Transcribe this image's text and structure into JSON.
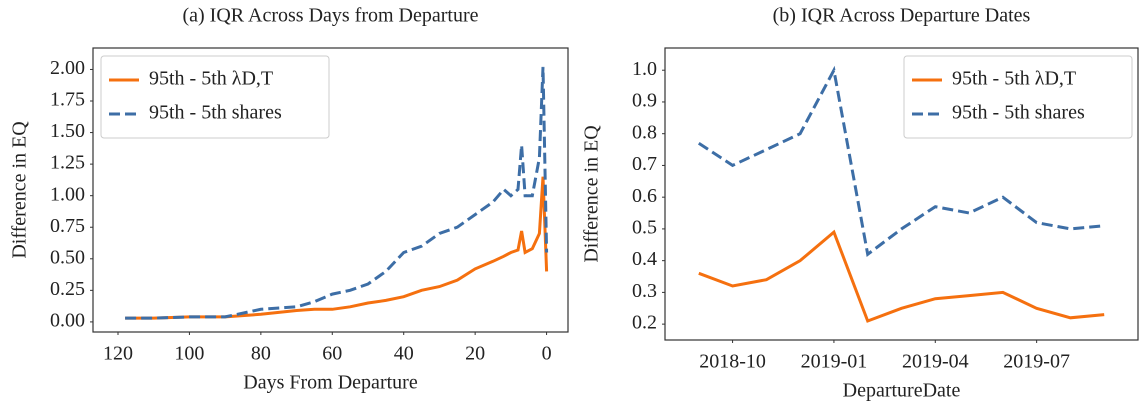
{
  "chart_data": [
    {
      "type": "line",
      "title": "(a) IQR Across Days from Departure",
      "xlabel": "Days From Departure",
      "ylabel": "Difference in EQ",
      "x": [
        118,
        110,
        100,
        90,
        80,
        70,
        65,
        60,
        55,
        50,
        45,
        40,
        35,
        30,
        25,
        20,
        15,
        12,
        10,
        8,
        7,
        6,
        4,
        2,
        1,
        0
      ],
      "series": [
        {
          "name": "95th - 5th λD,T",
          "color": "#f5700f",
          "line_style": "solid",
          "values": [
            0.03,
            0.03,
            0.04,
            0.04,
            0.06,
            0.09,
            0.1,
            0.1,
            0.12,
            0.15,
            0.17,
            0.2,
            0.25,
            0.28,
            0.33,
            0.42,
            0.48,
            0.52,
            0.55,
            0.57,
            0.72,
            0.55,
            0.58,
            0.7,
            1.15,
            0.4
          ]
        },
        {
          "name": "95th - 5th shares",
          "color": "#3d6ea6",
          "line_style": "dashed",
          "values": [
            0.03,
            0.03,
            0.04,
            0.04,
            0.1,
            0.12,
            0.16,
            0.22,
            0.25,
            0.3,
            0.4,
            0.55,
            0.6,
            0.7,
            0.75,
            0.85,
            0.95,
            1.05,
            1.0,
            1.05,
            1.4,
            1.0,
            1.0,
            1.3,
            2.02,
            0.55
          ]
        }
      ],
      "xlim": [
        127,
        -6
      ],
      "xticks": [
        120,
        100,
        80,
        60,
        40,
        20,
        0
      ],
      "ylim": [
        -0.08,
        2.17
      ],
      "yticks": [
        {
          "value": 0,
          "label": "0.00"
        },
        {
          "value": 0.25,
          "label": "0.25"
        },
        {
          "value": 0.5,
          "label": "0.50"
        },
        {
          "value": 0.75,
          "label": "0.75"
        },
        {
          "value": 1,
          "label": "1.00"
        },
        {
          "value": 1.25,
          "label": "1.25"
        },
        {
          "value": 1.5,
          "label": "1.50"
        },
        {
          "value": 1.75,
          "label": "1.75"
        },
        {
          "value": 2,
          "label": "2.00"
        }
      ],
      "legend": "upper left"
    },
    {
      "type": "line",
      "title": "(b) IQR Across Departure Dates",
      "xlabel": "DepartureDate",
      "ylabel": "Difference in EQ",
      "x": [
        "2018-09",
        "2018-10",
        "2018-11",
        "2018-12",
        "2019-01",
        "2019-02",
        "2019-03",
        "2019-04",
        "2019-05",
        "2019-06",
        "2019-07",
        "2019-08",
        "2019-09"
      ],
      "series": [
        {
          "name": "95th - 5th λD,T",
          "color": "#f5700f",
          "line_style": "solid",
          "values": [
            0.36,
            0.32,
            0.34,
            0.4,
            0.49,
            0.21,
            0.25,
            0.28,
            0.29,
            0.3,
            0.25,
            0.22,
            0.23
          ]
        },
        {
          "name": "95th - 5th shares",
          "color": "#3d6ea6",
          "line_style": "dashed",
          "values": [
            0.77,
            0.7,
            0.75,
            0.8,
            1.0,
            0.42,
            0.5,
            0.57,
            0.55,
            0.6,
            0.52,
            0.5,
            0.51
          ]
        }
      ],
      "xlim": [
        "2018-08",
        "2019-10"
      ],
      "xticks": [
        "2018-10",
        "2019-01",
        "2019-04",
        "2019-07"
      ],
      "ylim": [
        0.15,
        1.07
      ],
      "yticks": [
        0.2,
        0.3,
        0.4,
        0.5,
        0.6,
        0.7,
        0.8,
        0.9,
        {
          "value": 1,
          "label": "1.0"
        }
      ],
      "legend": "upper right"
    }
  ]
}
